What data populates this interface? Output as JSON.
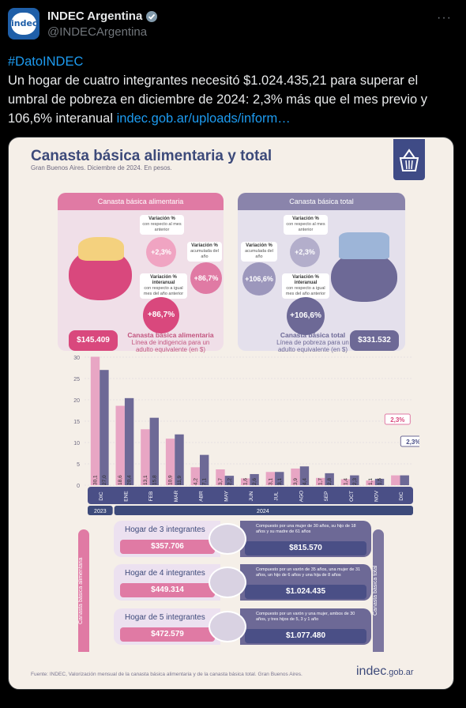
{
  "tweet": {
    "author_name": "INDEC Argentina",
    "handle": "@INDECArgentina",
    "avatar_text": "indec",
    "hashtag": "#DatoINDEC",
    "body": "Un hogar de cuatro integrantes necesitó $1.024.435,21 para superar el umbral de pobreza en diciembre de 2024: 2,3% más que el mes previo y 106,6% interanual ",
    "link": "indec.gob.ar/uploads/inform…",
    "more": "···"
  },
  "infographic": {
    "title": "Canasta básica alimentaria y total",
    "subtitle": "Gran Buenos Aires. Diciembre de 2024. En pesos.",
    "left_panel": {
      "header": "Canasta básica alimentaria",
      "var_month_label": "Variación %",
      "var_month_sub": "con respecto al mes anterior",
      "var_month_value": "+2,3%",
      "var_year_label": "Variación %",
      "var_year_sub": "acumulada del año",
      "var_year_value": "+86,7%",
      "var_inter_label": "Variación % interanual",
      "var_inter_sub": "con respecto a igual mes del año anterior",
      "var_inter_value": "+86,7%",
      "price": "$145.409",
      "price_title": "Canasta básica alimentaria",
      "price_sub": "Línea de indigencia para un adulto equivalente (en $)"
    },
    "right_panel": {
      "header": "Canasta básica total",
      "var_month_label": "Variación %",
      "var_month_sub": "con respecto al mes anterior",
      "var_month_value": "+2,3%",
      "var_year_label": "Variación %",
      "var_year_sub": "acumulada del año",
      "var_year_value": "+106,6%",
      "var_inter_label": "Variación % interanual",
      "var_inter_sub": "con respecto a igual mes del año anterior",
      "var_inter_value": "+106,6%",
      "price": "$331.532",
      "price_title": "Canasta básica total",
      "price_sub": "Línea de pobreza para un adulto equivalente (en $)"
    },
    "side_left": "Canasta básica alimentaria",
    "side_right": "Canasta básica total",
    "households": [
      {
        "title": "Hogar de 3 integrantes",
        "cba": "$357.706",
        "desc": "Compuesto por una mujer de 30 años, su hijo de 18 años y su madre de 61 años",
        "cbt": "$815.570"
      },
      {
        "title": "Hogar de 4 integrantes",
        "cba": "$449.314",
        "desc": "Compuesto por un varón de 35 años, una mujer de 31 años, un hijo de 6 años y una hija de 8 años",
        "cbt": "$1.024.435"
      },
      {
        "title": "Hogar de 5 integrantes",
        "cba": "$472.579",
        "desc": "Compuesto por un varón y una mujer, ambos de 30 años, y tres hijos de 5, 3 y 1 año",
        "cbt": "$1.077.480"
      }
    ],
    "source": "Fuente: INDEC, Valorización mensual de la canasta básica alimentaria y de la canasta básica total. Gran Buenos Aires.",
    "logo_main": "indec",
    "logo_suffix": ".gob.ar"
  },
  "chart_data": {
    "type": "bar",
    "categories": [
      "DIC",
      "ENE",
      "FEB",
      "MAR",
      "ABR",
      "MAY",
      "JUN",
      "JUL",
      "AGO",
      "SEP",
      "OCT",
      "NOV",
      "DIC"
    ],
    "year_labels": [
      "2023",
      "2024"
    ],
    "series": [
      {
        "values": [
          30.1,
          18.6,
          13.1,
          10.9,
          4.2,
          3.7,
          1.6,
          3.1,
          3.9,
          1.7,
          1.4,
          1.1,
          2.3
        ],
        "labels": [
          "30,1",
          "18,6",
          "13,1",
          "10,9",
          "4,2",
          "3,7",
          "1,6",
          "3,1",
          "3,9",
          "1,7",
          "1,4",
          "1,1",
          "2,3%"
        ],
        "color": "#e8a6c4"
      },
      {
        "values": [
          27.0,
          20.4,
          15.8,
          11.9,
          7.1,
          2.2,
          2.6,
          3.1,
          4.4,
          2.8,
          2.3,
          1.5,
          2.3
        ],
        "labels": [
          "27,0",
          "20,4",
          "15,8",
          "11,9",
          "7,1",
          "2,2",
          "2,6",
          "3,1",
          "4,4",
          "2,8",
          "2,3",
          "1,5",
          "2,3%"
        ],
        "color": "#6d6996"
      }
    ],
    "y_ticks": [
      "0",
      "5",
      "10",
      "15",
      "20",
      "25",
      "30"
    ],
    "ylim": [
      0,
      30
    ],
    "grid": true
  },
  "colors": {
    "twitter_bg": "#000000",
    "link": "#1d9bf0",
    "pink": "#e07aa4",
    "purple": "#6d6996",
    "navy": "#3d4a7a"
  }
}
